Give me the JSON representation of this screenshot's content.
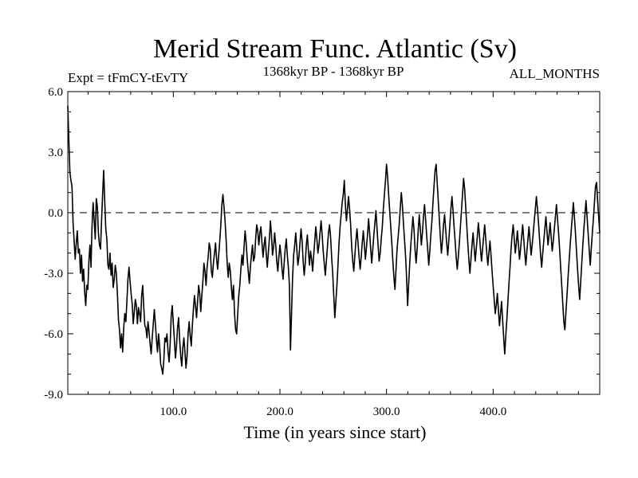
{
  "chart_data": {
    "type": "line",
    "title": "Merid Stream Func. Atlantic (Sv)",
    "subtitle_left": "Expt = tFmCY-tEvTY",
    "subtitle_center": "1368kyr BP - 1368kyr BP",
    "subtitle_right": "ALL_MONTHS",
    "xlabel": "Time (in years since start)",
    "ylabel": "",
    "xlim": [
      1,
      500
    ],
    "ylim": [
      -9.0,
      6.0
    ],
    "x_ticks": [
      100,
      200,
      300,
      400
    ],
    "x_tick_labels": [
      "100.0",
      "200.0",
      "300.0",
      "400.0"
    ],
    "y_ticks": [
      6.0,
      3.0,
      0.0,
      -3.0,
      -6.0,
      -9.0
    ],
    "y_tick_labels": [
      "6.0",
      "3.0",
      "0.0",
      "-3.0",
      "-6.0",
      "-9.0"
    ],
    "reference_line": {
      "y": 0.0,
      "style": "dashed"
    },
    "series": [
      {
        "name": "Merid Stream Func. Atlantic",
        "x_start": 1,
        "x_step": 1,
        "color": "#000000",
        "values": [
          5.3,
          3.6,
          2.0,
          1.6,
          1.3,
          -0.5,
          -1.4,
          -2.3,
          -1.5,
          -0.9,
          -2.0,
          -1.8,
          -3.0,
          -2.1,
          -3.4,
          -2.8,
          -3.9,
          -4.6,
          -3.6,
          -3.8,
          -2.4,
          -1.6,
          -2.7,
          -0.6,
          0.5,
          -0.4,
          -1.3,
          0.7,
          0.3,
          -1.0,
          -1.6,
          -1.8,
          -0.4,
          0.9,
          2.1,
          0.6,
          -0.8,
          -1.3,
          -2.6,
          -2.8,
          -2.0,
          -3.1,
          -2.5,
          -3.7,
          -3.3,
          -2.6,
          -3.0,
          -4.0,
          -5.3,
          -5.8,
          -6.7,
          -6.0,
          -6.9,
          -5.7,
          -5.0,
          -5.4,
          -4.4,
          -3.3,
          -2.7,
          -3.4,
          -4.0,
          -4.5,
          -5.5,
          -4.9,
          -4.3,
          -4.6,
          -5.5,
          -4.7,
          -5.0,
          -5.4,
          -4.1,
          -3.6,
          -4.7,
          -5.6,
          -5.7,
          -6.2,
          -5.4,
          -5.9,
          -6.5,
          -7.0,
          -6.2,
          -5.5,
          -4.8,
          -5.5,
          -6.3,
          -6.9,
          -6.0,
          -6.6,
          -7.5,
          -7.7,
          -8.0,
          -7.3,
          -6.2,
          -6.4,
          -6.0,
          -6.9,
          -7.4,
          -6.5,
          -5.1,
          -4.6,
          -5.5,
          -6.3,
          -7.2,
          -6.6,
          -5.7,
          -5.2,
          -6.3,
          -7.1,
          -7.6,
          -6.7,
          -6.2,
          -6.9,
          -7.7,
          -7.1,
          -6.0,
          -5.4,
          -6.1,
          -6.6,
          -5.6,
          -4.8,
          -4.1,
          -4.6,
          -5.2,
          -4.4,
          -3.6,
          -4.0,
          -4.9,
          -4.1,
          -3.4,
          -2.5,
          -2.9,
          -3.6,
          -2.7,
          -2.2,
          -1.5,
          -1.8,
          -2.9,
          -3.2,
          -2.5,
          -2.0,
          -1.5,
          -2.3,
          -2.8,
          -2.1,
          -1.4,
          -0.6,
          0.4,
          0.9,
          0.3,
          -0.4,
          -1.3,
          -2.5,
          -3.2,
          -2.5,
          -2.9,
          -3.7,
          -4.3,
          -3.6,
          -5.0,
          -5.8,
          -6.0,
          -5.0,
          -4.1,
          -3.6,
          -2.8,
          -2.1,
          -2.6,
          -1.7,
          -0.9,
          -1.5,
          -2.3,
          -2.9,
          -3.5,
          -2.7,
          -2.1,
          -1.6,
          -2.4,
          -2.2,
          -1.3,
          -0.6,
          -0.9,
          -1.6,
          -1.0,
          -0.7,
          -1.5,
          -2.2,
          -1.6,
          -1.2,
          -2.0,
          -2.7,
          -2.0,
          -1.3,
          -0.4,
          -1.1,
          -2.1,
          -1.7,
          -1.0,
          -1.6,
          -2.4,
          -2.9,
          -2.2,
          -1.6,
          -2.1,
          -2.8,
          -3.3,
          -2.5,
          -1.8,
          -1.3,
          -2.1,
          -2.7,
          -3.6,
          -6.8,
          -5.0,
          -3.2,
          -2.1,
          -1.6,
          -1.0,
          -1.8,
          -2.6,
          -2.2,
          -1.5,
          -0.8,
          -1.4,
          -2.4,
          -3.1,
          -2.5,
          -1.6,
          -1.1,
          -1.9,
          -2.6,
          -1.9,
          -2.3,
          -2.9,
          -2.1,
          -1.4,
          -0.7,
          -1.3,
          -2.0,
          -1.6,
          -1.0,
          -0.4,
          -1.1,
          -1.9,
          -2.5,
          -3.1,
          -2.4,
          -1.7,
          -1.0,
          -0.6,
          -1.2,
          -2.2,
          -3.0,
          -4.1,
          -5.2,
          -4.4,
          -3.6,
          -2.6,
          -1.5,
          -0.7,
          -0.1,
          0.5,
          0.9,
          1.6,
          0.4,
          -0.4,
          0.2,
          0.8,
          0.2,
          -0.6,
          -1.7,
          -2.4,
          -2.9,
          -2.1,
          -1.4,
          -0.8,
          -1.5,
          -2.2,
          -2.8,
          -2.2,
          -1.5,
          -0.9,
          -1.6,
          -2.3,
          -1.7,
          -1.1,
          -0.3,
          -1.0,
          -1.8,
          -2.5,
          -1.8,
          -1.1,
          -0.5,
          0.1,
          -0.8,
          -1.6,
          -2.4,
          -2.0,
          -1.3,
          -0.7,
          0.2,
          0.9,
          1.6,
          2.4,
          1.8,
          0.9,
          0.1,
          -0.7,
          -1.5,
          -2.4,
          -3.2,
          -3.8,
          -2.8,
          -1.8,
          -1.2,
          -0.6,
          0.2,
          1.0,
          0.4,
          -0.5,
          -1.3,
          -2.1,
          -3.2,
          -4.6,
          -3.5,
          -2.5,
          -1.6,
          -0.9,
          -0.2,
          -0.8,
          -1.8,
          -2.5,
          -1.8,
          -0.9,
          -0.1,
          -0.8,
          -1.6,
          -1.0,
          -0.2,
          0.4,
          -0.3,
          -1.1,
          -1.8,
          -2.6,
          -1.9,
          -1.1,
          -0.4,
          0.5,
          1.3,
          2.1,
          2.4,
          1.5,
          0.6,
          -0.3,
          -1.2,
          -2.0,
          -1.4,
          -0.6,
          -0.1,
          -0.8,
          -1.5,
          -2.1,
          -1.4,
          -0.6,
          0.2,
          0.8,
          0.1,
          -0.7,
          -1.4,
          -2.2,
          -2.8,
          -2.2,
          -1.5,
          -0.7,
          0.1,
          0.9,
          1.7,
          1.2,
          0.3,
          -0.6,
          -1.5,
          -2.3,
          -3.0,
          -2.3,
          -1.6,
          -1.0,
          -1.7,
          -2.4,
          -1.8,
          -1.2,
          -0.5,
          -1.1,
          -1.8,
          -2.4,
          -1.8,
          -1.2,
          -0.6,
          -1.3,
          -2.0,
          -2.6,
          -2.0,
          -1.4,
          -2.1,
          -2.9,
          -3.6,
          -4.3,
          -5.0,
          -4.6,
          -4.0,
          -4.8,
          -5.6,
          -5.0,
          -4.4,
          -5.3,
          -6.2,
          -7.0,
          -6.1,
          -5.3,
          -4.4,
          -3.5,
          -2.7,
          -1.8,
          -1.1,
          -0.6,
          -1.3,
          -2.0,
          -1.5,
          -0.9,
          -1.6,
          -2.3,
          -1.8,
          -1.2,
          -0.6,
          -1.3,
          -2.0,
          -2.6,
          -1.9,
          -1.3,
          -0.7,
          -1.4,
          -2.1,
          -1.6,
          -1.0,
          -0.4,
          0.2,
          0.8,
          0.2,
          -0.5,
          -1.3,
          -2.1,
          -2.7,
          -2.0,
          -1.4,
          -0.8,
          -0.2,
          -0.9,
          -1.6,
          -1.1,
          -0.5,
          -1.2,
          -1.9,
          -1.4,
          -0.8,
          -0.2,
          0.4,
          -0.3,
          -1.0,
          -1.8,
          -2.7,
          -3.6,
          -4.5,
          -5.4,
          -5.8,
          -4.9,
          -4.1,
          -3.2,
          -2.4,
          -1.6,
          -0.9,
          -0.2,
          0.5,
          -0.2,
          -1.0,
          -1.9,
          -2.8,
          -3.6,
          -4.3,
          -3.4,
          -2.5,
          -1.6,
          -0.8,
          -0.1,
          0.6,
          -0.2,
          -1.0,
          -1.8,
          -2.6,
          -1.8,
          -1.0,
          -0.3,
          0.5,
          1.3,
          1.5,
          0.6,
          -0.2,
          -1.0
        ]
      }
    ]
  }
}
